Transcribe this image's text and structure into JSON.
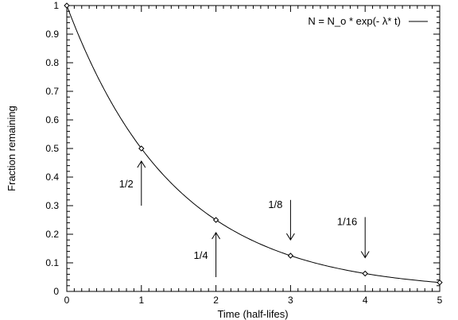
{
  "chart_data": {
    "type": "line",
    "xlabel": "Time (half-lifes)",
    "ylabel": "Fraction remaining",
    "xlim": [
      0,
      5
    ],
    "ylim": [
      0,
      1
    ],
    "x_ticks": [
      "0",
      "1",
      "2",
      "3",
      "4",
      "5"
    ],
    "y_ticks": [
      "0",
      "0.1",
      "0.2",
      "0.3",
      "0.4",
      "0.5",
      "0.6",
      "0.7",
      "0.8",
      "0.9",
      "1"
    ],
    "grid": false,
    "legend_position": "top-right",
    "series": [
      {
        "name": "N = N_o * exp(- λ* t)",
        "function": "2^(-x)",
        "color": "#000000"
      }
    ],
    "markers": {
      "x": [
        0,
        1,
        2,
        3,
        4,
        5
      ],
      "y": [
        1,
        0.5,
        0.25,
        0.125,
        0.0625,
        0.03125
      ]
    },
    "annotations": [
      {
        "text": "1/2",
        "x": 1,
        "y": 0.5,
        "arrow": "up",
        "arrow_from": 0.3
      },
      {
        "text": "1/4",
        "x": 2,
        "y": 0.25,
        "arrow": "up",
        "arrow_from": 0.05
      },
      {
        "text": "1/8",
        "x": 3,
        "y": 0.125,
        "arrow": "down",
        "arrow_from": 0.32
      },
      {
        "text": "1/16",
        "x": 4,
        "y": 0.0625,
        "arrow": "down",
        "arrow_from": 0.26
      }
    ]
  }
}
